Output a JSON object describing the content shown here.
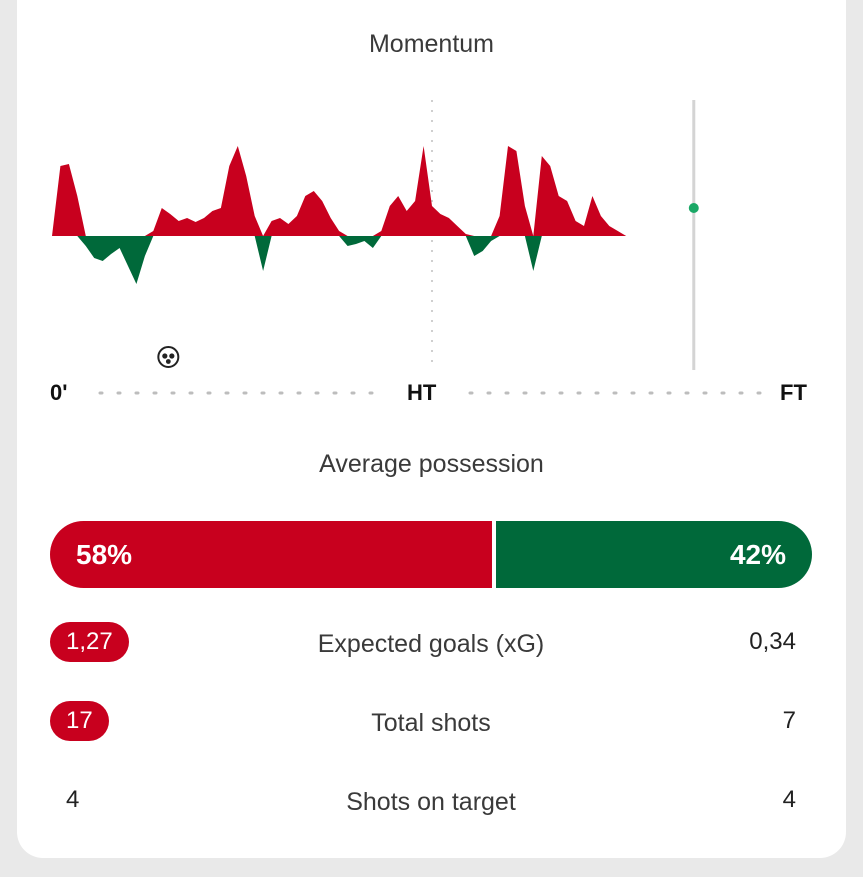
{
  "momentum": {
    "title": "Momentum",
    "timeline_labels": {
      "start": "0'",
      "half": "HT",
      "end": "FT"
    },
    "goal_icon": "football-icon",
    "colors": {
      "home": "#c8001e",
      "away": "#00693a",
      "current_marker": "#1aa866"
    }
  },
  "chart_data": {
    "type": "area",
    "title": "Momentum",
    "xlabel": "",
    "ylabel": "",
    "x_ticks": [
      "0'",
      "HT",
      "FT"
    ],
    "ylim": [
      -100,
      100
    ],
    "x_range": [
      0,
      90
    ],
    "series": [
      {
        "x": [
          0,
          1,
          2,
          3,
          4,
          5,
          6,
          7,
          8,
          9,
          10,
          11,
          12,
          13,
          14,
          15,
          16,
          17,
          18,
          19,
          20,
          21,
          22,
          23,
          24,
          25,
          26,
          27,
          28,
          29,
          30,
          31,
          32,
          33,
          34,
          35,
          36,
          37,
          38,
          39,
          40,
          41,
          42,
          43,
          44,
          45,
          46,
          47,
          48,
          49,
          50,
          51,
          52,
          53,
          54,
          55,
          56,
          57,
          58,
          59,
          60,
          61,
          62,
          63,
          64,
          65,
          66,
          67,
          68,
          69,
          70,
          71,
          72,
          73,
          74,
          75,
          76
        ],
        "values": [
          0,
          70,
          72,
          40,
          -10,
          -22,
          -25,
          -18,
          -12,
          -30,
          -48,
          -20,
          5,
          28,
          22,
          15,
          18,
          14,
          18,
          25,
          28,
          70,
          90,
          60,
          20,
          -35,
          15,
          18,
          12,
          20,
          40,
          45,
          35,
          18,
          5,
          -10,
          -8,
          -5,
          -12,
          5,
          30,
          40,
          25,
          35,
          90,
          30,
          22,
          18,
          10,
          2,
          -20,
          -15,
          -5,
          20,
          90,
          85,
          30,
          -35,
          80,
          70,
          40,
          35,
          15,
          10,
          40,
          20,
          10,
          5,
          0,
          0,
          0,
          0,
          0,
          0,
          0,
          0,
          0
        ]
      }
    ],
    "current_minute": 76,
    "goal_minutes": [
      12
    ]
  },
  "possession": {
    "title": "Average possession",
    "home_percent": 58,
    "away_percent": 42,
    "home_label": "58%",
    "away_label": "42%"
  },
  "stats": [
    {
      "label": "Expected goals (xG)",
      "home": "1,27",
      "away": "0,34",
      "home_highlight": true
    },
    {
      "label": "Total shots",
      "home": "17",
      "away": "7",
      "home_highlight": true
    },
    {
      "label": "Shots on target",
      "home": "4",
      "away": "4",
      "home_highlight": false
    }
  ]
}
